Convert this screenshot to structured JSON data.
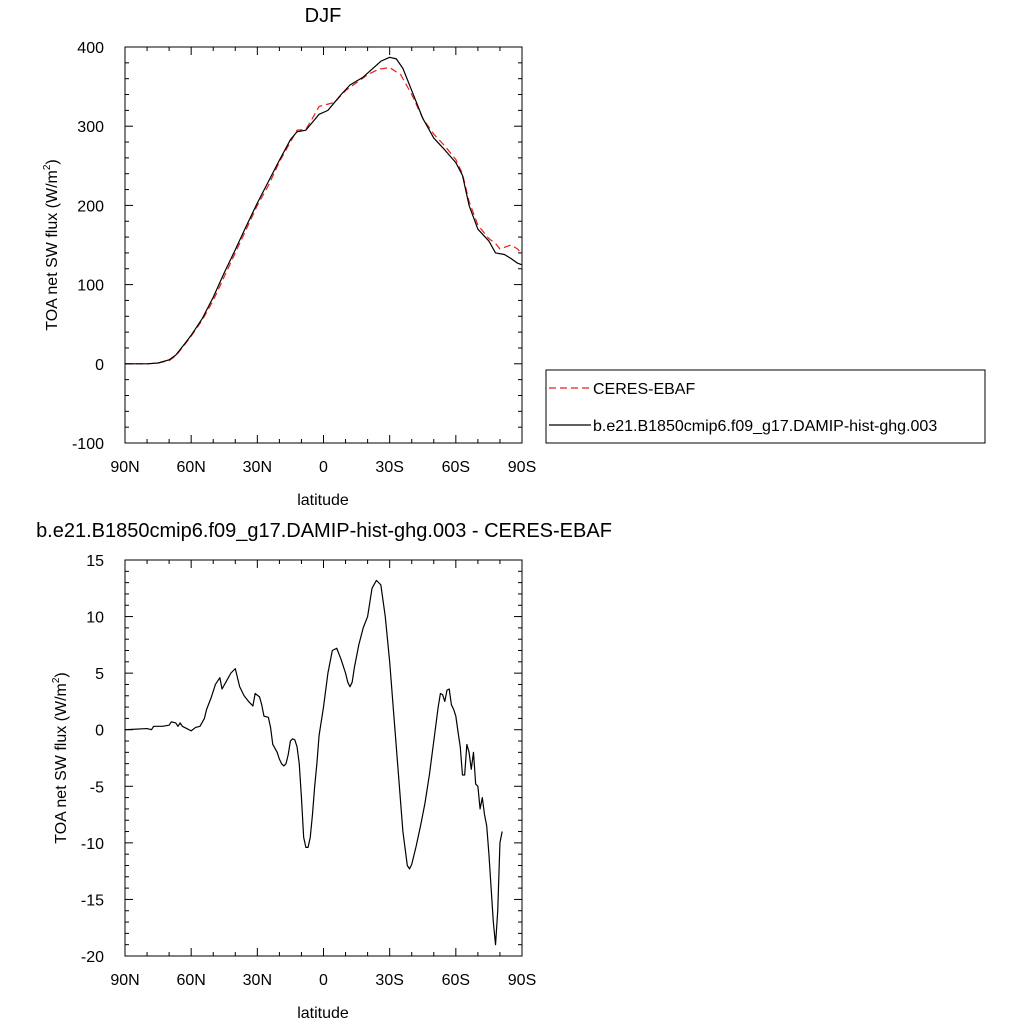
{
  "chart_data": [
    {
      "type": "line",
      "title": "DJF",
      "xlabel": "latitude",
      "ylabel": "TOA net SW flux (W/m",
      "ylabel_sup": "2",
      "ylabel_close": ")",
      "xlim": [
        90,
        -90
      ],
      "ylim": [
        -100,
        400
      ],
      "x_ticks": [
        90,
        60,
        30,
        0,
        -30,
        -60,
        -90
      ],
      "x_tick_labels": [
        "90N",
        "60N",
        "30N",
        "0",
        "30S",
        "60S",
        "90S"
      ],
      "y_ticks": [
        -100,
        0,
        100,
        200,
        300,
        400
      ],
      "y_tick_labels": [
        "-100",
        "0",
        "100",
        "200",
        "300",
        "400"
      ],
      "legend_position": "right",
      "series": [
        {
          "name": "CERES-EBAF",
          "color": "#e8211d",
          "dash": "dashed",
          "points": [
            [
              90,
              0
            ],
            [
              80,
              0
            ],
            [
              75,
              1
            ],
            [
              70,
              4
            ],
            [
              67,
              10
            ],
            [
              63,
              24
            ],
            [
              60,
              35
            ],
            [
              55,
              55
            ],
            [
              50,
              80
            ],
            [
              45,
              110
            ],
            [
              40,
              140
            ],
            [
              35,
              170
            ],
            [
              30,
              200
            ],
            [
              25,
              225
            ],
            [
              20,
              255
            ],
            [
              15,
              280
            ],
            [
              12,
              295
            ],
            [
              8,
              296
            ],
            [
              5,
              310
            ],
            [
              2,
              325
            ],
            [
              -5,
              330
            ],
            [
              -10,
              345
            ],
            [
              -15,
              355
            ],
            [
              -20,
              365
            ],
            [
              -25,
              372
            ],
            [
              -30,
              374
            ],
            [
              -35,
              365
            ],
            [
              -40,
              340
            ],
            [
              -45,
              310
            ],
            [
              -50,
              290
            ],
            [
              -55,
              275
            ],
            [
              -60,
              258
            ],
            [
              -63,
              240
            ],
            [
              -66,
              205
            ],
            [
              -70,
              175
            ],
            [
              -75,
              158
            ],
            [
              -78,
              152
            ],
            [
              -80,
              145
            ],
            [
              -83,
              148
            ],
            [
              -85,
              150
            ],
            [
              -88,
              145
            ],
            [
              -90,
              138
            ]
          ]
        },
        {
          "name": "b.e21.B1850cmip6.f09_g17.DAMIP-hist-ghg.003",
          "color": "#000000",
          "dash": "solid",
          "points": [
            [
              90,
              0
            ],
            [
              80,
              0
            ],
            [
              75,
              1
            ],
            [
              70,
              5
            ],
            [
              67,
              11
            ],
            [
              63,
              25
            ],
            [
              60,
              36
            ],
            [
              55,
              57
            ],
            [
              50,
              84
            ],
            [
              45,
              115
            ],
            [
              40,
              144
            ],
            [
              35,
              174
            ],
            [
              30,
              203
            ],
            [
              25,
              230
            ],
            [
              20,
              257
            ],
            [
              15,
              283
            ],
            [
              12,
              293
            ],
            [
              8,
              295
            ],
            [
              5,
              305
            ],
            [
              2,
              315
            ],
            [
              -2,
              320
            ],
            [
              -5,
              330
            ],
            [
              -8,
              340
            ],
            [
              -12,
              352
            ],
            [
              -18,
              362
            ],
            [
              -22,
              372
            ],
            [
              -26,
              382
            ],
            [
              -30,
              387
            ],
            [
              -33,
              385
            ],
            [
              -36,
              373
            ],
            [
              -40,
              345
            ],
            [
              -45,
              310
            ],
            [
              -50,
              285
            ],
            [
              -55,
              270
            ],
            [
              -60,
              254
            ],
            [
              -63,
              238
            ],
            [
              -66,
              200
            ],
            [
              -70,
              170
            ],
            [
              -75,
              155
            ],
            [
              -78,
              140
            ],
            [
              -82,
              138
            ],
            [
              -85,
              133
            ],
            [
              -88,
              127
            ],
            [
              -90,
              125
            ]
          ]
        }
      ]
    },
    {
      "type": "line",
      "title": "b.e21.B1850cmip6.f09_g17.DAMIP-hist-ghg.003 - CERES-EBAF",
      "xlabel": "latitude",
      "ylabel": "TOA net SW flux (W/m",
      "ylabel_sup": "2",
      "ylabel_close": ")",
      "xlim": [
        90,
        -90
      ],
      "ylim": [
        -20,
        15
      ],
      "x_ticks": [
        90,
        60,
        30,
        0,
        -30,
        -60,
        -90
      ],
      "x_tick_labels": [
        "90N",
        "60N",
        "30N",
        "0",
        "30S",
        "60S",
        "90S"
      ],
      "y_ticks": [
        -20,
        -15,
        -10,
        -5,
        0,
        5,
        10,
        15
      ],
      "y_tick_labels": [
        "-20",
        "-15",
        "-10",
        "-5",
        "0",
        "5",
        "10",
        "15"
      ],
      "series": [
        {
          "color": "#000000",
          "dash": "solid",
          "points": [
            [
              90,
              0
            ],
            [
              80,
              0.1
            ],
            [
              78,
              0
            ],
            [
              77,
              0.3
            ],
            [
              73,
              0.3
            ],
            [
              70,
              0.4
            ],
            [
              69,
              0.7
            ],
            [
              67,
              0.6
            ],
            [
              66,
              0.3
            ],
            [
              65,
              0.6
            ],
            [
              64,
              0.3
            ],
            [
              62,
              0.1
            ],
            [
              60,
              -0.1
            ],
            [
              58,
              0.2
            ],
            [
              56,
              0.3
            ],
            [
              54,
              1
            ],
            [
              53,
              1.8
            ],
            [
              51,
              2.8
            ],
            [
              49,
              4
            ],
            [
              47,
              4.6
            ],
            [
              46,
              3.6
            ],
            [
              44,
              4.3
            ],
            [
              42,
              5
            ],
            [
              40,
              5.4
            ],
            [
              38,
              3.8
            ],
            [
              36,
              3
            ],
            [
              34,
              2.5
            ],
            [
              32,
              2.1
            ],
            [
              31,
              3.2
            ],
            [
              29,
              2.9
            ],
            [
              28,
              2.2
            ],
            [
              27,
              1.2
            ],
            [
              25,
              1.1
            ],
            [
              24,
              0.2
            ],
            [
              23,
              -1.3
            ],
            [
              21,
              -2
            ],
            [
              20,
              -2.6
            ],
            [
              19,
              -3
            ],
            [
              18,
              -3.2
            ],
            [
              17,
              -3
            ],
            [
              16,
              -2.2
            ],
            [
              15,
              -1
            ],
            [
              14,
              -0.8
            ],
            [
              13,
              -0.9
            ],
            [
              12,
              -1.5
            ],
            [
              11,
              -3
            ],
            [
              10,
              -6
            ],
            [
              9,
              -9.5
            ],
            [
              8,
              -10.4
            ],
            [
              7,
              -10.4
            ],
            [
              6,
              -9.5
            ],
            [
              5,
              -7.5
            ],
            [
              4,
              -5
            ],
            [
              3,
              -3
            ],
            [
              2,
              -0.5
            ],
            [
              0,
              2
            ],
            [
              -2,
              5
            ],
            [
              -4,
              7
            ],
            [
              -6,
              7.2
            ],
            [
              -8,
              6.2
            ],
            [
              -10,
              5
            ],
            [
              -11,
              4.2
            ],
            [
              -12,
              3.8
            ],
            [
              -13,
              4.2
            ],
            [
              -14,
              5.5
            ],
            [
              -16,
              7.5
            ],
            [
              -18,
              9
            ],
            [
              -20,
              10
            ],
            [
              -22,
              12.5
            ],
            [
              -24,
              13.2
            ],
            [
              -26,
              12.8
            ],
            [
              -28,
              10
            ],
            [
              -30,
              6
            ],
            [
              -32,
              1
            ],
            [
              -34,
              -4
            ],
            [
              -36,
              -9
            ],
            [
              -38,
              -12
            ],
            [
              -39,
              -12.3
            ],
            [
              -40,
              -11.9
            ],
            [
              -42,
              -10.3
            ],
            [
              -44,
              -8.5
            ],
            [
              -46,
              -6.5
            ],
            [
              -48,
              -4
            ],
            [
              -50,
              -1
            ],
            [
              -52,
              2
            ],
            [
              -53,
              3.2
            ],
            [
              -54,
              3.1
            ],
            [
              -55,
              2.5
            ],
            [
              -56,
              3.5
            ],
            [
              -57,
              3.6
            ],
            [
              -58,
              2.2
            ],
            [
              -59,
              1.8
            ],
            [
              -60,
              1.2
            ],
            [
              -61,
              -0.2
            ],
            [
              -62,
              -1.5
            ],
            [
              -63,
              -4
            ],
            [
              -64,
              -4
            ],
            [
              -65,
              -1.3
            ],
            [
              -66,
              -2
            ],
            [
              -67,
              -3.5
            ],
            [
              -68,
              -2
            ],
            [
              -69,
              -4.8
            ],
            [
              -70,
              -5
            ],
            [
              -71,
              -7
            ],
            [
              -72,
              -6
            ],
            [
              -73,
              -7.5
            ],
            [
              -74,
              -8.5
            ],
            [
              -75,
              -11
            ],
            [
              -76,
              -14
            ],
            [
              -77,
              -17
            ],
            [
              -78,
              -19
            ],
            [
              -79,
              -16
            ],
            [
              -80,
              -10
            ],
            [
              -81,
              -9
            ]
          ]
        }
      ]
    }
  ]
}
